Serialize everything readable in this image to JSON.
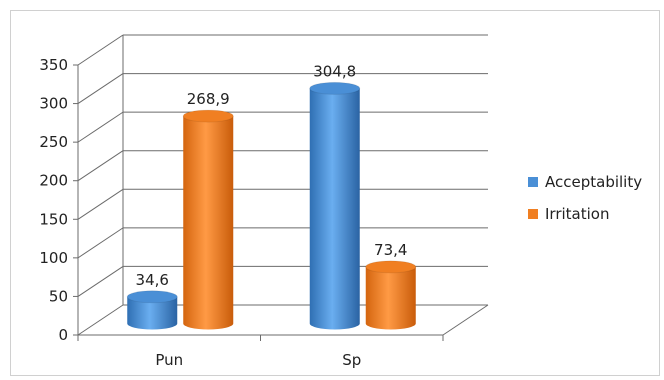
{
  "chart_data": {
    "type": "bar",
    "title": "",
    "xlabel": "",
    "ylabel": "",
    "categories": [
      "Pun",
      "Sp"
    ],
    "series": [
      {
        "name": "Acceptability",
        "values": [
          34.6,
          304.8
        ],
        "labels": [
          "34,6",
          "304,8"
        ],
        "color": "#4a8fd6"
      },
      {
        "name": "Irritation",
        "values": [
          268.9,
          73.4
        ],
        "labels": [
          "268,9",
          "73,4"
        ],
        "color": "#f07f22"
      }
    ],
    "ylim": [
      0,
      350
    ],
    "yticks": [
      "0",
      "50",
      "100",
      "150",
      "200",
      "250",
      "300",
      "350"
    ],
    "grid": true,
    "legend": "right",
    "style": "3d-cylinder"
  }
}
